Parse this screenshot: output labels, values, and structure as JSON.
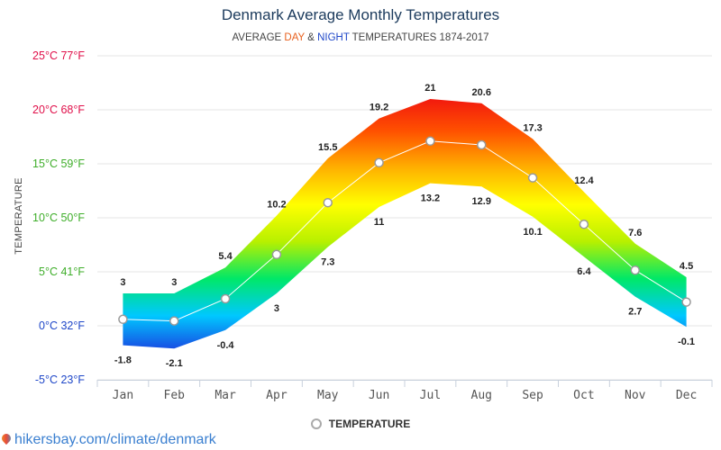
{
  "chart_data": {
    "type": "area",
    "title": "Denmark Average Monthly Temperatures",
    "subtitle": {
      "prefix": "AVERAGE ",
      "day": "DAY",
      "sep": " & ",
      "night": "NIGHT",
      "suffix": " TEMPERATURES 1874-2017"
    },
    "ylabel": "TEMPERATURE",
    "ylim": [
      -5,
      25
    ],
    "y_ticks": [
      {
        "value": 25,
        "label": "25°C 77°F",
        "color": "#e0104a"
      },
      {
        "value": 20,
        "label": "20°C 68°F",
        "color": "#e0104a"
      },
      {
        "value": 15,
        "label": "15°C 59°F",
        "color": "#3fae2a"
      },
      {
        "value": 10,
        "label": "10°C 50°F",
        "color": "#3fae2a"
      },
      {
        "value": 5,
        "label": "5°C 41°F",
        "color": "#3fae2a"
      },
      {
        "value": 0,
        "label": "0°C 32°F",
        "color": "#1f47c8"
      },
      {
        "value": -5,
        "label": "-5°C 23°F",
        "color": "#1f47c8"
      }
    ],
    "categories": [
      "Jan",
      "Feb",
      "Mar",
      "Apr",
      "May",
      "Jun",
      "Jul",
      "Aug",
      "Sep",
      "Oct",
      "Nov",
      "Dec"
    ],
    "series": [
      {
        "name": "Day",
        "values": [
          3,
          3,
          5.4,
          10.2,
          15.5,
          19.2,
          21,
          20.6,
          17.3,
          12.4,
          7.6,
          4.5
        ]
      },
      {
        "name": "Night",
        "values": [
          -1.8,
          -2.1,
          -0.4,
          3,
          7.3,
          11,
          13.2,
          12.9,
          10.1,
          6.4,
          2.7,
          -0.1
        ]
      },
      {
        "name": "TEMPERATURE",
        "values": [
          0.6,
          0.45,
          2.5,
          6.6,
          11.4,
          15.1,
          17.1,
          16.75,
          13.7,
          9.4,
          5.15,
          2.2
        ]
      }
    ],
    "day_labels": [
      "3",
      "3",
      "5.4",
      "10.2",
      "15.5",
      "19.2",
      "21",
      "20.6",
      "17.3",
      "12.4",
      "7.6",
      "4.5"
    ],
    "night_labels": [
      "-1.8",
      "-2.1",
      "-0.4",
      "3",
      "7.3",
      "11",
      "13.2",
      "12.9",
      "10.1",
      "6.4",
      "2.7",
      "-0.1"
    ],
    "legend": "TEMPERATURE"
  },
  "colors": {
    "band_stops": [
      "#1a3fe0",
      "#00c8ff",
      "#00e868",
      "#b8f000",
      "#ffff00",
      "#ffb000",
      "#ff5000",
      "#f01010"
    ],
    "mean_line": "#ffffff",
    "grid": "#e6e6e6"
  },
  "source": "hikersbay.com/climate/denmark"
}
